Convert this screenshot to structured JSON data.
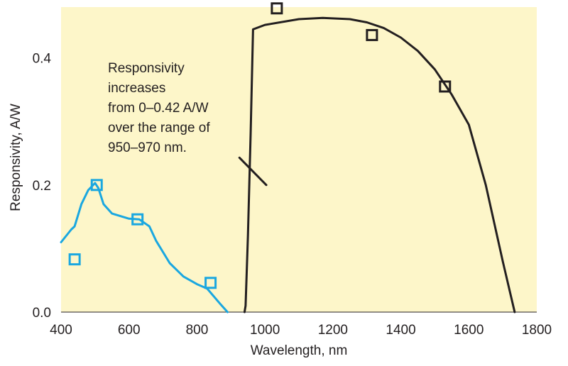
{
  "chart_data": {
    "type": "line",
    "title": "",
    "xlabel": "Wavelength, nm",
    "ylabel": "Responsivity, A/W",
    "xlim": [
      400,
      1800
    ],
    "ylim": [
      0,
      0.48
    ],
    "xticks": [
      400,
      600,
      800,
      1000,
      1200,
      1400,
      1600,
      1800
    ],
    "yticks": [
      0.0,
      0.2,
      0.4
    ],
    "ytick_labels": [
      "0.0",
      "0.2",
      "0.4"
    ],
    "grid": false,
    "plot_background": "#fdf6c9",
    "series": [
      {
        "color": "#1aa7e0",
        "line": {
          "x": [
            400,
            430,
            440,
            460,
            480,
            500,
            510,
            525,
            550,
            600,
            630,
            660,
            680,
            720,
            760,
            800,
            830,
            870,
            890
          ],
          "y": [
            0.11,
            0.13,
            0.135,
            0.17,
            0.192,
            0.203,
            0.195,
            0.17,
            0.155,
            0.147,
            0.146,
            0.135,
            0.112,
            0.077,
            0.056,
            0.044,
            0.037,
            0.012,
            0.0
          ]
        },
        "markers": {
          "x": [
            440,
            505,
            625,
            840
          ],
          "y": [
            0.083,
            0.2,
            0.146,
            0.046
          ]
        }
      },
      {
        "color": "#231f20",
        "line": {
          "x": [
            940,
            943,
            950,
            958,
            965,
            1000,
            1100,
            1170,
            1250,
            1300,
            1350,
            1400,
            1450,
            1500,
            1550,
            1600,
            1650,
            1700,
            1735
          ],
          "y": [
            0.0,
            0.01,
            0.12,
            0.28,
            0.445,
            0.452,
            0.461,
            0.463,
            0.461,
            0.456,
            0.447,
            0.432,
            0.411,
            0.382,
            0.342,
            0.295,
            0.2,
            0.08,
            0.0
          ]
        },
        "markers": {
          "x": [
            1035,
            1315,
            1530
          ],
          "y": [
            0.478,
            0.436,
            0.355
          ]
        }
      }
    ],
    "annotation": {
      "lines": [
        "Responsivity",
        "increases",
        "from 0–0.42 A/W",
        "over the range of",
        "950–970 nm."
      ],
      "pointer_from": [
        925,
        0.243
      ],
      "pointer_to": [
        1004,
        0.2
      ]
    }
  }
}
